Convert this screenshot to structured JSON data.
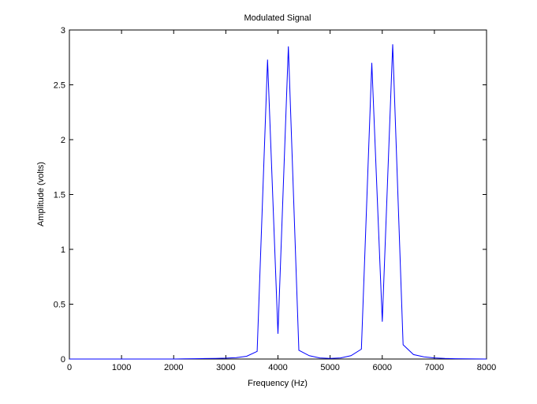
{
  "chart_data": {
    "type": "line",
    "title": "Modulated Signal",
    "xlabel": "Frequency (Hz)",
    "ylabel": "Amplitude (volts)",
    "xlim": [
      0,
      8000
    ],
    "ylim": [
      0,
      3
    ],
    "xticks": [
      0,
      1000,
      2000,
      3000,
      4000,
      5000,
      6000,
      7000,
      8000
    ],
    "xtick_labels": [
      "0",
      "1000",
      "2000",
      "3000",
      "4000",
      "5000",
      "6000",
      "7000",
      "8000"
    ],
    "yticks": [
      0,
      0.5,
      1,
      1.5,
      2,
      2.5,
      3
    ],
    "ytick_labels": [
      "0",
      "0.5",
      "1",
      "1.5",
      "2",
      "2.5",
      "3"
    ],
    "grid": false,
    "line_color": "#0000ff",
    "series": [
      {
        "x": [
          0,
          200,
          400,
          600,
          800,
          1000,
          1200,
          1400,
          1600,
          1800,
          2000,
          2200,
          2400,
          2600,
          2800,
          3000,
          3200,
          3400,
          3600,
          3800,
          4000,
          4200,
          4400,
          4600,
          4800,
          5000,
          5200,
          5400,
          5600,
          5800,
          6000,
          6200,
          6400,
          6600,
          6800,
          7000,
          7200,
          7400,
          7600,
          7800,
          8000
        ],
        "y": [
          0.0,
          0.0,
          0.0,
          0.0,
          0.0,
          0.0,
          0.0,
          0.0,
          0.0,
          0.0,
          0.0,
          0.002,
          0.003,
          0.004,
          0.006,
          0.008,
          0.012,
          0.025,
          0.07,
          2.73,
          0.23,
          2.85,
          0.08,
          0.03,
          0.01,
          0.005,
          0.01,
          0.03,
          0.09,
          2.7,
          0.34,
          2.87,
          0.13,
          0.04,
          0.02,
          0.01,
          0.005,
          0.003,
          0.002,
          0.001,
          0.0
        ]
      }
    ]
  }
}
